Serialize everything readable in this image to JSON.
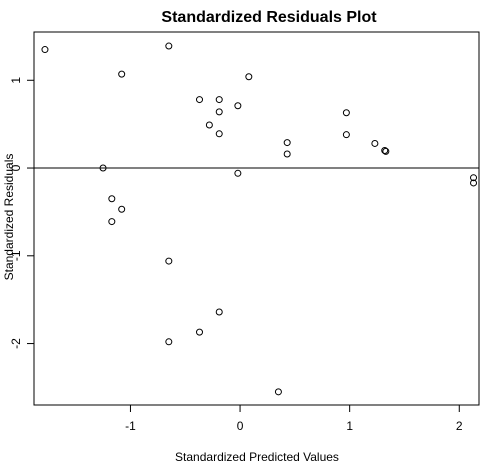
{
  "chart_data": {
    "type": "scatter",
    "title": "Standardized Residuals Plot",
    "xlabel": "Standardized Predicted Values",
    "ylabel": "Standardized Residuals",
    "xlim": [
      -1.88,
      2.18
    ],
    "ylim": [
      -2.7,
      1.55
    ],
    "xticks": [
      -1,
      0,
      1,
      2
    ],
    "yticks": [
      -2,
      -1,
      0,
      1
    ],
    "reference_line_y": 0,
    "grid": false,
    "points": [
      {
        "x": -1.78,
        "y": 1.35
      },
      {
        "x": -0.65,
        "y": 1.39
      },
      {
        "x": -1.08,
        "y": 1.07
      },
      {
        "x": 0.08,
        "y": 1.04
      },
      {
        "x": -0.37,
        "y": 0.78
      },
      {
        "x": -0.19,
        "y": 0.78
      },
      {
        "x": -0.02,
        "y": 0.71
      },
      {
        "x": -0.19,
        "y": 0.64
      },
      {
        "x": -0.28,
        "y": 0.49
      },
      {
        "x": -0.19,
        "y": 0.39
      },
      {
        "x": 0.97,
        "y": 0.63
      },
      {
        "x": 0.97,
        "y": 0.38
      },
      {
        "x": 0.43,
        "y": 0.29
      },
      {
        "x": 0.43,
        "y": 0.16
      },
      {
        "x": 1.23,
        "y": 0.28
      },
      {
        "x": 1.32,
        "y": 0.2
      },
      {
        "x": 1.33,
        "y": 0.19
      },
      {
        "x": -1.25,
        "y": 0.0
      },
      {
        "x": -0.02,
        "y": -0.06
      },
      {
        "x": 2.13,
        "y": -0.11
      },
      {
        "x": 2.13,
        "y": -0.17
      },
      {
        "x": -1.17,
        "y": -0.35
      },
      {
        "x": -1.08,
        "y": -0.47
      },
      {
        "x": -1.17,
        "y": -0.61
      },
      {
        "x": -0.65,
        "y": -1.06
      },
      {
        "x": -0.19,
        "y": -1.64
      },
      {
        "x": -0.37,
        "y": -1.87
      },
      {
        "x": -0.65,
        "y": -1.98
      },
      {
        "x": 0.35,
        "y": -2.55
      }
    ]
  }
}
